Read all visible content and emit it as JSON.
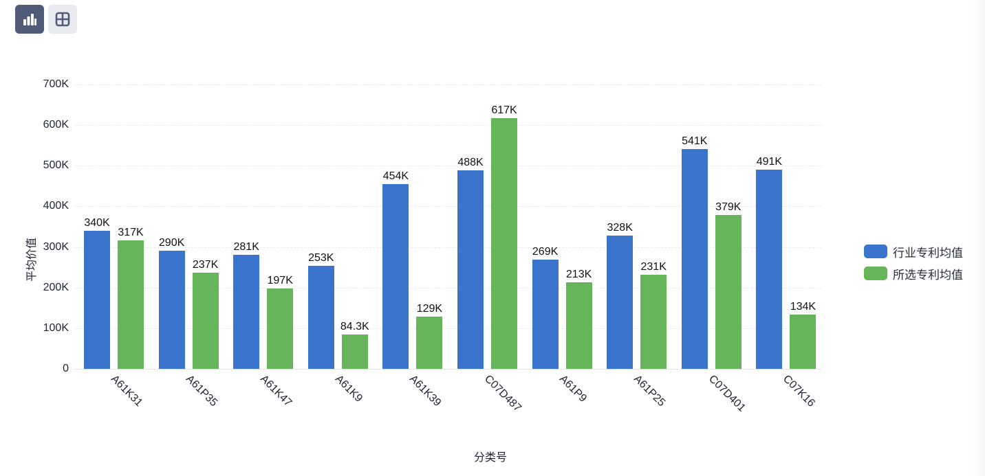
{
  "toolbar": {
    "buttons": [
      {
        "name": "bar-chart-view",
        "icon": "bar-chart-icon",
        "active": true
      },
      {
        "name": "table-view",
        "icon": "grid-table-icon",
        "active": false
      }
    ]
  },
  "colors": {
    "series1": "#3a74cc",
    "series2": "#66b55b",
    "toolbar_active": "#4f5b78",
    "toolbar_inactive": "#e9eaf0"
  },
  "chart_data": {
    "type": "bar",
    "title": "",
    "xlabel": "分类号",
    "ylabel": "平均价值",
    "ylim": [
      0,
      700000
    ],
    "yticks": [
      "0",
      "100K",
      "200K",
      "300K",
      "400K",
      "500K",
      "600K",
      "700K"
    ],
    "grid": true,
    "legend_position": "right",
    "categories": [
      "A61K31",
      "A61P35",
      "A61K47",
      "A61K9",
      "A61K39",
      "C07D487",
      "A61P9",
      "A61P25",
      "C07D401",
      "C07K16"
    ],
    "series": [
      {
        "name": "行业专利均值",
        "color": "#3a74cc",
        "values": [
          340000,
          290000,
          281000,
          253000,
          454000,
          488000,
          269000,
          328000,
          541000,
          491000
        ],
        "labels": [
          "340K",
          "290K",
          "281K",
          "253K",
          "454K",
          "488K",
          "269K",
          "328K",
          "541K",
          "491K"
        ]
      },
      {
        "name": "所选专利均值",
        "color": "#66b55b",
        "values": [
          317000,
          237000,
          197000,
          84300,
          129000,
          617000,
          213000,
          231000,
          379000,
          134000
        ],
        "labels": [
          "317K",
          "237K",
          "197K",
          "84.3K",
          "129K",
          "617K",
          "213K",
          "231K",
          "379K",
          "134K"
        ]
      }
    ]
  }
}
